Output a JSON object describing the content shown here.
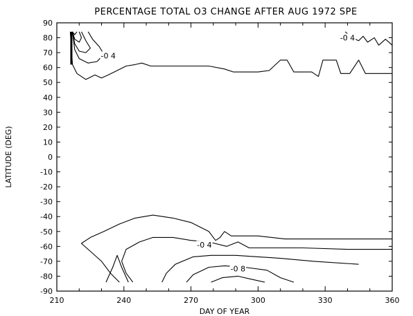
{
  "chart_data": {
    "type": "contour",
    "title": "PERCENTAGE TOTAL O3 CHANGE AFTER AUG  1972 SPE",
    "xlabel": "DAY OF YEAR",
    "ylabel": "LATITUDE (DEG)",
    "xlim": [
      210,
      360
    ],
    "ylim": [
      -90,
      90
    ],
    "x_ticks": [
      "210",
      "240",
      "270",
      "300",
      "330",
      "360"
    ],
    "y_ticks": [
      "90",
      "80",
      "70",
      "60",
      "50",
      "40",
      "30",
      "20",
      "10",
      "0",
      "-10",
      "-20",
      "-30",
      "-40",
      "-50",
      "-60",
      "-70",
      "-80",
      "-90"
    ],
    "grid": false,
    "contour_labels": [
      {
        "text": "-0 4",
        "x": 233,
        "y": 68
      },
      {
        "text": "-0 4",
        "x": 340,
        "y": 80
      },
      {
        "text": "-0 4",
        "x": 276,
        "y": -59
      },
      {
        "text": "-0 8",
        "x": 291,
        "y": -75
      }
    ],
    "contours": [
      {
        "name": "north-04",
        "points": [
          [
            216,
            84
          ],
          [
            217,
            62
          ],
          [
            219,
            56
          ],
          [
            223,
            52
          ],
          [
            227,
            55
          ],
          [
            230,
            53
          ],
          [
            233,
            55
          ],
          [
            237,
            58
          ],
          [
            241,
            61
          ],
          [
            245,
            62
          ],
          [
            248,
            63
          ],
          [
            252,
            61
          ],
          [
            258,
            61
          ],
          [
            265,
            61
          ],
          [
            270,
            61
          ],
          [
            278,
            61
          ],
          [
            285,
            59
          ],
          [
            289,
            57
          ],
          [
            293,
            57
          ],
          [
            300,
            57
          ],
          [
            305,
            58
          ],
          [
            310,
            65
          ],
          [
            313,
            65
          ],
          [
            316,
            57
          ],
          [
            324,
            57
          ],
          [
            327,
            54
          ],
          [
            329,
            65
          ],
          [
            335,
            65
          ],
          [
            337,
            56
          ],
          [
            341,
            56
          ],
          [
            345,
            65
          ],
          [
            348,
            56
          ],
          [
            352,
            56
          ],
          [
            360,
            56
          ]
        ]
      },
      {
        "name": "north-inner-1",
        "points": [
          [
            217,
            84
          ],
          [
            218,
            72
          ],
          [
            220,
            66
          ],
          [
            224,
            63
          ],
          [
            228,
            64
          ],
          [
            231,
            69
          ],
          [
            229,
            74
          ],
          [
            226,
            79
          ],
          [
            224,
            84
          ]
        ]
      },
      {
        "name": "north-inner-2",
        "points": [
          [
            217,
            84
          ],
          [
            218,
            76
          ],
          [
            220,
            71
          ],
          [
            223,
            70
          ],
          [
            225,
            73
          ],
          [
            223,
            78
          ],
          [
            221,
            84
          ]
        ]
      },
      {
        "name": "north-inner-3",
        "points": [
          [
            217,
            84
          ],
          [
            218,
            79
          ],
          [
            220,
            77
          ],
          [
            221,
            80
          ],
          [
            220,
            84
          ]
        ]
      },
      {
        "name": "north-inner-4",
        "points": [
          [
            217,
            84
          ],
          [
            218,
            82
          ],
          [
            219,
            84
          ]
        ]
      },
      {
        "name": "northeast-04",
        "points": [
          [
            339,
            84
          ],
          [
            342,
            80
          ],
          [
            345,
            78
          ],
          [
            347,
            81
          ],
          [
            349,
            77
          ],
          [
            352,
            80
          ],
          [
            354,
            75
          ],
          [
            357,
            79
          ],
          [
            360,
            75
          ]
        ]
      },
      {
        "name": "south-outer",
        "points": [
          [
            238,
            -84
          ],
          [
            234,
            -78
          ],
          [
            230,
            -70
          ],
          [
            224,
            -62
          ],
          [
            221,
            -58
          ],
          [
            225,
            -54
          ],
          [
            231,
            -50
          ],
          [
            238,
            -45
          ],
          [
            245,
            -41
          ],
          [
            253,
            -39
          ],
          [
            262,
            -41
          ],
          [
            270,
            -44
          ],
          [
            278,
            -50
          ],
          [
            281,
            -56
          ],
          [
            283,
            -54
          ],
          [
            285,
            -50
          ],
          [
            288,
            -53
          ],
          [
            293,
            -53
          ],
          [
            300,
            -53
          ],
          [
            312,
            -55
          ],
          [
            330,
            -55
          ],
          [
            345,
            -55
          ],
          [
            360,
            -55
          ]
        ]
      },
      {
        "name": "south-04",
        "points": [
          [
            244,
            -84
          ],
          [
            241,
            -78
          ],
          [
            239,
            -70
          ],
          [
            241,
            -62
          ],
          [
            247,
            -57
          ],
          [
            253,
            -54
          ],
          [
            262,
            -54
          ],
          [
            270,
            -56
          ],
          [
            278,
            -57
          ],
          [
            286,
            -60
          ],
          [
            291,
            -57
          ],
          [
            296,
            -61
          ],
          [
            305,
            -61
          ],
          [
            320,
            -61
          ],
          [
            340,
            -62
          ],
          [
            360,
            -62
          ]
        ]
      },
      {
        "name": "south-06",
        "points": [
          [
            257,
            -84
          ],
          [
            259,
            -78
          ],
          [
            263,
            -72
          ],
          [
            271,
            -67
          ],
          [
            279,
            -66
          ],
          [
            290,
            -66
          ],
          [
            300,
            -67
          ],
          [
            310,
            -68
          ],
          [
            325,
            -70
          ],
          [
            345,
            -72
          ]
        ]
      },
      {
        "name": "south-08",
        "points": [
          [
            268,
            -84
          ],
          [
            271,
            -79
          ],
          [
            278,
            -74
          ],
          [
            285,
            -73
          ],
          [
            294,
            -74
          ],
          [
            304,
            -76
          ],
          [
            310,
            -81
          ],
          [
            316,
            -84
          ]
        ]
      },
      {
        "name": "south-10",
        "points": [
          [
            279,
            -84
          ],
          [
            284,
            -81
          ],
          [
            291,
            -80
          ],
          [
            297,
            -82
          ],
          [
            303,
            -84
          ]
        ]
      },
      {
        "name": "south-spike",
        "points": [
          [
            232,
            -84
          ],
          [
            235,
            -74
          ],
          [
            237,
            -66
          ],
          [
            239,
            -74
          ],
          [
            242,
            -84
          ]
        ]
      }
    ]
  }
}
